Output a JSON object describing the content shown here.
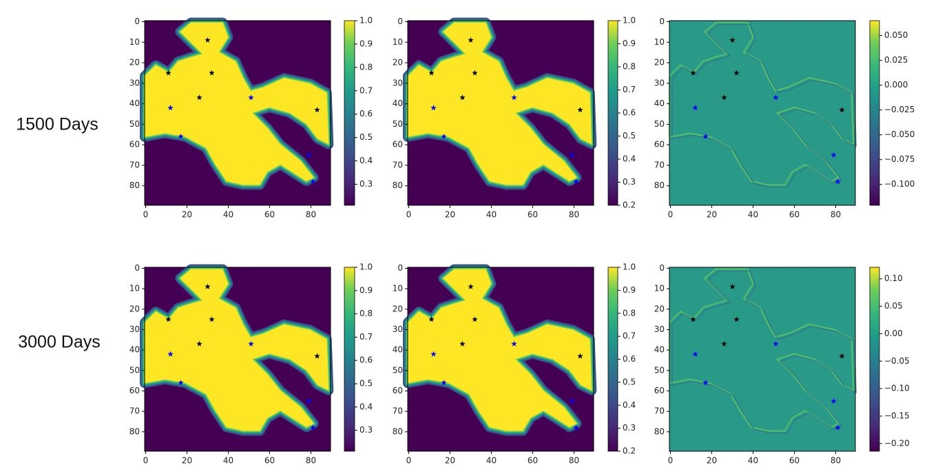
{
  "row_labels": [
    "1500 Days",
    "3000 Days"
  ],
  "chart_data": [
    {
      "type": "heatmap",
      "cmap": "viridis",
      "xlim": [
        -0.5,
        89.5
      ],
      "ylim": [
        89.5,
        -0.5
      ],
      "xticks": [
        0,
        20,
        40,
        60,
        80
      ],
      "yticks": [
        0,
        10,
        20,
        30,
        40,
        50,
        60,
        70,
        80
      ],
      "clim": [
        0.21,
        1
      ],
      "cticks": [
        0.3,
        0.4,
        0.5,
        0.6,
        0.7,
        0.8,
        0.9,
        {
          "value": 1,
          "label": "1.0"
        }
      ],
      "series": [
        {
          "color": "#000000",
          "x": [
            30,
            11,
            32,
            26,
            83
          ],
          "values": [
            9,
            25,
            25,
            37,
            43
          ]
        },
        {
          "color": "#0000ff",
          "x": [
            12,
            51,
            17,
            79,
            81
          ],
          "values": [
            42,
            37,
            56,
            65,
            78
          ]
        }
      ]
    },
    {
      "type": "heatmap",
      "cmap": "viridis",
      "xlim": [
        -0.5,
        89.5
      ],
      "ylim": [
        89.5,
        -0.5
      ],
      "xticks": [
        0,
        20,
        40,
        60,
        80
      ],
      "yticks": [
        0,
        10,
        20,
        30,
        40,
        50,
        60,
        70,
        80
      ],
      "clim": [
        0.2,
        1
      ],
      "cticks": [
        0.2,
        0.3,
        0.4,
        0.5,
        0.6,
        0.7,
        0.8,
        0.9,
        {
          "value": 1,
          "label": "1.0"
        }
      ],
      "series": [
        {
          "color": "#000000",
          "x": [
            30,
            11,
            32,
            26,
            83
          ],
          "values": [
            9,
            25,
            25,
            37,
            43
          ]
        },
        {
          "color": "#0000ff",
          "x": [
            12,
            51,
            17,
            79,
            81
          ],
          "values": [
            42,
            37,
            56,
            65,
            78
          ]
        }
      ]
    },
    {
      "type": "heatmap",
      "cmap": "viridis",
      "xlim": [
        -0.5,
        89.5
      ],
      "ylim": [
        89.5,
        -0.5
      ],
      "xticks": [
        0,
        20,
        40,
        60,
        80
      ],
      "yticks": [
        0,
        10,
        20,
        30,
        40,
        50,
        60,
        70,
        80
      ],
      "clim": [
        -0.121,
        0.065
      ],
      "cticks": [
        {
          "value": 0.05,
          "label": "0.050"
        },
        {
          "value": 0.025,
          "label": "0.025"
        },
        {
          "value": 0,
          "label": "0.000"
        },
        {
          "value": -0.025,
          "label": "−0.025"
        },
        {
          "value": -0.05,
          "label": "−0.050"
        },
        {
          "value": -0.075,
          "label": "−0.075"
        },
        {
          "value": -0.1,
          "label": "−0.100"
        }
      ],
      "series": [
        {
          "color": "#000000",
          "x": [
            30,
            11,
            32,
            26,
            83
          ],
          "values": [
            9,
            25,
            25,
            37,
            43
          ]
        },
        {
          "color": "#0000ff",
          "x": [
            12,
            51,
            17,
            79,
            81
          ],
          "values": [
            42,
            37,
            56,
            65,
            78
          ]
        }
      ]
    },
    {
      "type": "heatmap",
      "cmap": "viridis",
      "xlim": [
        -0.5,
        89.5
      ],
      "ylim": [
        89.5,
        -0.5
      ],
      "xticks": [
        0,
        20,
        40,
        60,
        80
      ],
      "yticks": [
        0,
        10,
        20,
        30,
        40,
        50,
        60,
        70,
        80
      ],
      "clim": [
        0.21,
        1
      ],
      "cticks": [
        0.3,
        0.4,
        0.5,
        0.6,
        0.7,
        0.8,
        0.9,
        {
          "value": 1,
          "label": "1.0"
        }
      ],
      "series": [
        {
          "color": "#000000",
          "x": [
            30,
            11,
            32,
            26,
            83
          ],
          "values": [
            9,
            25,
            25,
            37,
            43
          ]
        },
        {
          "color": "#0000ff",
          "x": [
            12,
            51,
            17,
            79,
            81
          ],
          "values": [
            42,
            37,
            56,
            65,
            78
          ]
        }
      ]
    },
    {
      "type": "heatmap",
      "cmap": "viridis",
      "xlim": [
        -0.5,
        89.5
      ],
      "ylim": [
        89.5,
        -0.5
      ],
      "xticks": [
        0,
        20,
        40,
        60,
        80
      ],
      "yticks": [
        0,
        10,
        20,
        30,
        40,
        50,
        60,
        70,
        80
      ],
      "clim": [
        0.2,
        1
      ],
      "cticks": [
        0.2,
        0.3,
        0.4,
        0.5,
        0.6,
        0.7,
        0.8,
        0.9,
        {
          "value": 1,
          "label": "1.0"
        }
      ],
      "series": [
        {
          "color": "#000000",
          "x": [
            30,
            11,
            32,
            26,
            83
          ],
          "values": [
            9,
            25,
            25,
            37,
            43
          ]
        },
        {
          "color": "#0000ff",
          "x": [
            12,
            51,
            17,
            79,
            81
          ],
          "values": [
            42,
            37,
            56,
            65,
            78
          ]
        }
      ]
    },
    {
      "type": "heatmap",
      "cmap": "viridis",
      "xlim": [
        -0.5,
        89.5
      ],
      "ylim": [
        89.5,
        -0.5
      ],
      "xticks": [
        0,
        20,
        40,
        60,
        80
      ],
      "yticks": [
        0,
        10,
        20,
        30,
        40,
        50,
        60,
        70,
        80
      ],
      "clim": [
        -0.214,
        0.121
      ],
      "cticks": [
        {
          "value": 0.1,
          "label": "0.10"
        },
        0.05,
        {
          "value": 0,
          "label": "0.00"
        },
        {
          "value": -0.05,
          "label": "−0.05"
        },
        {
          "value": -0.1,
          "label": "−0.10"
        },
        {
          "value": -0.15,
          "label": "−0.15"
        },
        {
          "value": -0.2,
          "label": "−0.20"
        }
      ],
      "series": [
        {
          "color": "#000000",
          "x": [
            30,
            11,
            32,
            26,
            83
          ],
          "values": [
            9,
            25,
            25,
            37,
            43
          ]
        },
        {
          "color": "#0000ff",
          "x": [
            12,
            51,
            17,
            79,
            81
          ],
          "values": [
            42,
            37,
            56,
            65,
            78
          ]
        }
      ]
    }
  ]
}
